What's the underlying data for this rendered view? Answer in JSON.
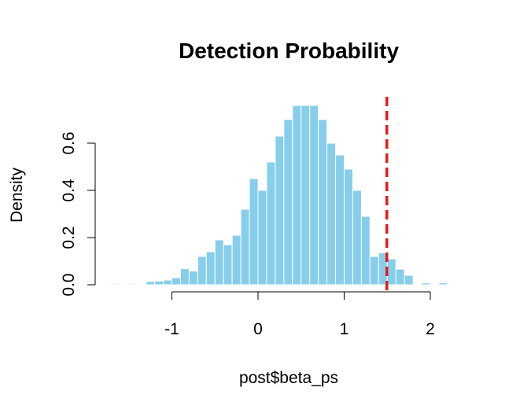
{
  "chart_data": {
    "type": "bar",
    "subtype": "histogram",
    "title": "Detection Probability",
    "xlabel": "post$beta_ps",
    "ylabel": "Density",
    "xlim": [
      -1.8,
      2.3
    ],
    "ylim": [
      0.0,
      0.78
    ],
    "bin_width": 0.1,
    "bins": [
      {
        "x0": -1.7,
        "x1": -1.6,
        "density": 0.004
      },
      {
        "x0": -1.6,
        "x1": -1.5,
        "density": 0.0
      },
      {
        "x0": -1.5,
        "x1": -1.4,
        "density": 0.004
      },
      {
        "x0": -1.4,
        "x1": -1.3,
        "density": 0.0
      },
      {
        "x0": -1.3,
        "x1": -1.2,
        "density": 0.014
      },
      {
        "x0": -1.2,
        "x1": -1.1,
        "density": 0.016
      },
      {
        "x0": -1.1,
        "x1": -1.0,
        "density": 0.02
      },
      {
        "x0": -1.0,
        "x1": -0.9,
        "density": 0.03
      },
      {
        "x0": -0.9,
        "x1": -0.8,
        "density": 0.068
      },
      {
        "x0": -0.8,
        "x1": -0.7,
        "density": 0.058
      },
      {
        "x0": -0.7,
        "x1": -0.6,
        "density": 0.12
      },
      {
        "x0": -0.6,
        "x1": -0.5,
        "density": 0.14
      },
      {
        "x0": -0.5,
        "x1": -0.4,
        "density": 0.19
      },
      {
        "x0": -0.4,
        "x1": -0.3,
        "density": 0.17
      },
      {
        "x0": -0.3,
        "x1": -0.2,
        "density": 0.21
      },
      {
        "x0": -0.2,
        "x1": -0.1,
        "density": 0.32
      },
      {
        "x0": -0.1,
        "x1": 0.0,
        "density": 0.45
      },
      {
        "x0": 0.0,
        "x1": 0.1,
        "density": 0.4
      },
      {
        "x0": 0.1,
        "x1": 0.2,
        "density": 0.52
      },
      {
        "x0": 0.2,
        "x1": 0.3,
        "density": 0.63
      },
      {
        "x0": 0.3,
        "x1": 0.4,
        "density": 0.7
      },
      {
        "x0": 0.4,
        "x1": 0.5,
        "density": 0.76
      },
      {
        "x0": 0.5,
        "x1": 0.6,
        "density": 0.76
      },
      {
        "x0": 0.6,
        "x1": 0.7,
        "density": 0.76
      },
      {
        "x0": 0.7,
        "x1": 0.8,
        "density": 0.7
      },
      {
        "x0": 0.8,
        "x1": 0.9,
        "density": 0.6
      },
      {
        "x0": 0.9,
        "x1": 1.0,
        "density": 0.55
      },
      {
        "x0": 1.0,
        "x1": 1.1,
        "density": 0.49
      },
      {
        "x0": 1.1,
        "x1": 1.2,
        "density": 0.4
      },
      {
        "x0": 1.2,
        "x1": 1.3,
        "density": 0.29
      },
      {
        "x0": 1.3,
        "x1": 1.4,
        "density": 0.12
      },
      {
        "x0": 1.4,
        "x1": 1.5,
        "density": 0.136
      },
      {
        "x0": 1.5,
        "x1": 1.6,
        "density": 0.11
      },
      {
        "x0": 1.6,
        "x1": 1.7,
        "density": 0.066
      },
      {
        "x0": 1.7,
        "x1": 1.8,
        "density": 0.04
      },
      {
        "x0": 1.8,
        "x1": 1.9,
        "density": 0.0
      },
      {
        "x0": 1.9,
        "x1": 2.0,
        "density": 0.008
      },
      {
        "x0": 2.0,
        "x1": 2.1,
        "density": 0.0
      },
      {
        "x0": 2.1,
        "x1": 2.2,
        "density": 0.008
      }
    ],
    "x_ticks": [
      -1,
      0,
      1,
      2
    ],
    "x_tick_labels": [
      "-1",
      "0",
      "1",
      "2"
    ],
    "y_ticks": [
      0.0,
      0.2,
      0.4,
      0.6
    ],
    "y_tick_labels": [
      "0.0",
      "0.2",
      "0.4",
      "0.6"
    ],
    "reference_line": {
      "x": 1.5,
      "style": "dashed",
      "color": "#e41a1c"
    },
    "bar_color": "#87ceeb",
    "bar_border_color": "#ffffff",
    "grid": false,
    "legend": "none"
  }
}
